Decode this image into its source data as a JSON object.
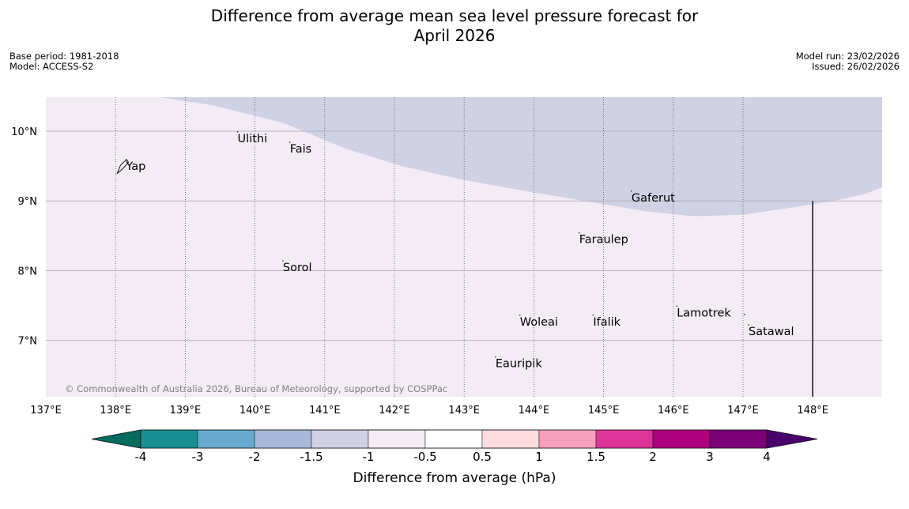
{
  "header": {
    "title_line1": "Difference from average mean sea level pressure forecast for",
    "title_line2": "April 2026",
    "base_period": "Base period: 1981-2018",
    "model": "Model: ACCESS-S2",
    "model_run": "Model run: 23/02/2026",
    "issued": "Issued: 26/02/2026"
  },
  "map": {
    "lon_range": [
      137,
      149
    ],
    "lat_range": [
      6.2,
      10.5
    ],
    "lat_labels": [
      "10°N",
      "9°N",
      "8°N",
      "7°N"
    ],
    "lon_labels": [
      "137°E",
      "138°E",
      "139°E",
      "140°E",
      "141°E",
      "142°E",
      "143°E",
      "144°E",
      "145°E",
      "146°E",
      "147°E",
      "148°E"
    ],
    "places": [
      {
        "name": "Ulithi",
        "lon": 139.75,
        "lat": 9.9
      },
      {
        "name": "Fais",
        "lon": 140.5,
        "lat": 9.75
      },
      {
        "name": "Yap",
        "lon": 138.15,
        "lat": 9.5
      },
      {
        "name": "Gaferut",
        "lon": 145.4,
        "lat": 9.05
      },
      {
        "name": "Faraulep",
        "lon": 144.65,
        "lat": 8.45
      },
      {
        "name": "Sorol",
        "lon": 140.4,
        "lat": 8.05
      },
      {
        "name": "Lamotrek",
        "lon": 146.05,
        "lat": 7.4
      },
      {
        "name": "Woleai",
        "lon": 143.8,
        "lat": 7.27
      },
      {
        "name": "Ifalik",
        "lon": 144.85,
        "lat": 7.27
      },
      {
        "name": "Satawal",
        "lon": 147.08,
        "lat": 7.13
      },
      {
        "name": "Eauripik",
        "lon": 143.45,
        "lat": 6.67
      }
    ],
    "copyright": "© Commonwealth of Australia 2026, Bureau of Meteorology, supported by COSPPac",
    "colors": {
      "background_fill": "#f4ecf5",
      "lower_fill": "#d0d1e4",
      "grid": "#b8b0c0",
      "meridian": "#555566"
    }
  },
  "colorbar": {
    "title": "Difference from average (hPa)",
    "tick_labels": [
      "-4",
      "-3",
      "-2",
      "-1.5",
      "-1",
      "-0.5",
      "0.5",
      "1",
      "1.5",
      "2",
      "3",
      "4"
    ],
    "colors": [
      "#036c5f",
      "#1a8f92",
      "#67a9cf",
      "#a6b9d8",
      "#d0d1e6",
      "#f4ecf5",
      "#ffffff",
      "#fddde0",
      "#f99fbe",
      "#dd3497",
      "#ae017e",
      "#7a0177",
      "#49006a"
    ]
  }
}
